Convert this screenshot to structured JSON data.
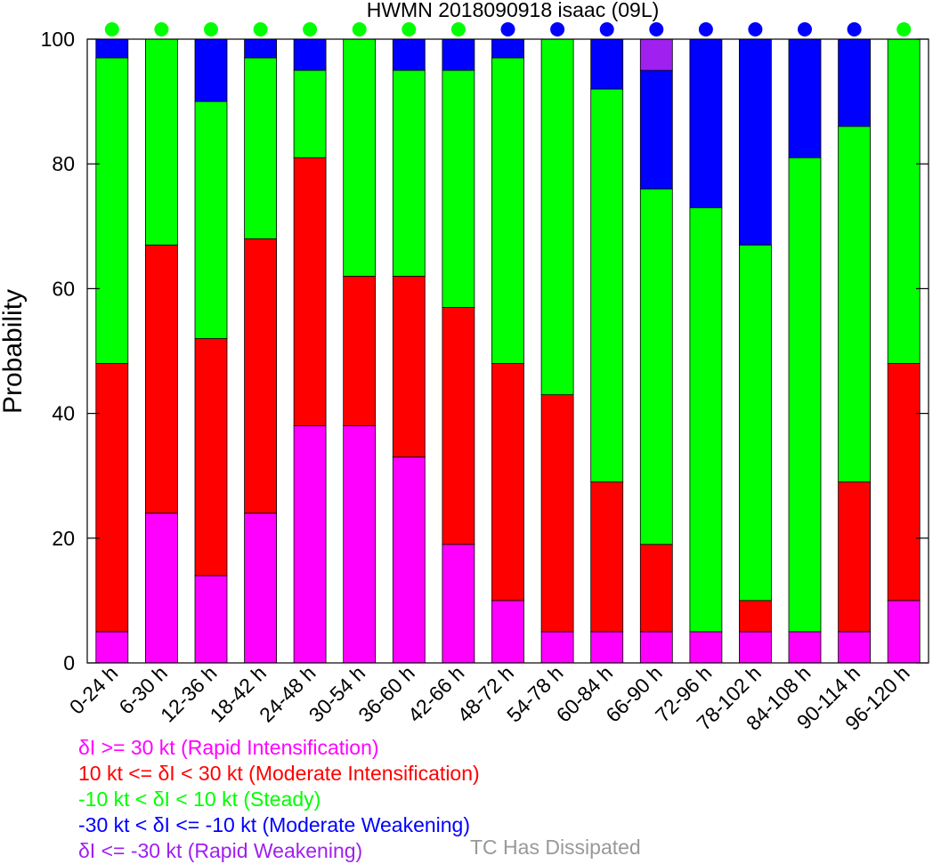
{
  "chart_data": {
    "type": "bar",
    "stacked": true,
    "title": "HWMN 2018090918 isaac (09L)",
    "xlabel": "",
    "ylabel": "Probability",
    "ylim": [
      0,
      100
    ],
    "yticks": [
      0,
      20,
      40,
      60,
      80,
      100
    ],
    "categories": [
      "0-24 h",
      "6-30 h",
      "12-36 h",
      "18-42 h",
      "24-48 h",
      "30-54 h",
      "36-60 h",
      "42-66 h",
      "48-72 h",
      "54-78 h",
      "60-84 h",
      "66-90 h",
      "72-96 h",
      "78-102 h",
      "84-108 h",
      "90-114 h",
      "96-120 h"
    ],
    "series": [
      {
        "name": "δI >= 30 kt (Rapid Intensification)",
        "color": "#ff00ff",
        "values": [
          5,
          24,
          14,
          24,
          38,
          38,
          33,
          19,
          10,
          5,
          5,
          5,
          5,
          5,
          5,
          5,
          10
        ]
      },
      {
        "name": "10 kt <= δI < 30 kt (Moderate Intensification)",
        "color": "#ff0000",
        "values": [
          43,
          43,
          38,
          44,
          43,
          24,
          29,
          38,
          38,
          38,
          24,
          14,
          0,
          5,
          0,
          24,
          38
        ]
      },
      {
        "name": "-10 kt < δI < 10 kt (Steady)",
        "color": "#00ff00",
        "values": [
          49,
          33,
          38,
          29,
          14,
          38,
          33,
          38,
          49,
          57,
          63,
          57,
          68,
          57,
          76,
          57,
          52
        ]
      },
      {
        "name": "-30 kt < δI <= -10 kt (Moderate Weakening)",
        "color": "#0000ff",
        "values": [
          3,
          0,
          10,
          3,
          5,
          0,
          5,
          5,
          3,
          0,
          8,
          19,
          27,
          33,
          19,
          14,
          0
        ]
      },
      {
        "name": "δI <= -30 kt (Rapid Weakening)",
        "color": "#a020f0",
        "values": [
          0,
          0,
          0,
          0,
          0,
          0,
          0,
          0,
          0,
          0,
          0,
          5,
          0,
          0,
          0,
          0,
          0
        ]
      }
    ],
    "top_markers": [
      "#00ff00",
      "#00ff00",
      "#00ff00",
      "#00ff00",
      "#00ff00",
      "#00ff00",
      "#00ff00",
      "#00ff00",
      "#0000ff",
      "#0000ff",
      "#0000ff",
      "#0000ff",
      "#0000ff",
      "#0000ff",
      "#0000ff",
      "#0000ff",
      "#00ff00"
    ],
    "dissipated_label": "TC Has Dissipated",
    "dissipated_color": "#999999"
  }
}
